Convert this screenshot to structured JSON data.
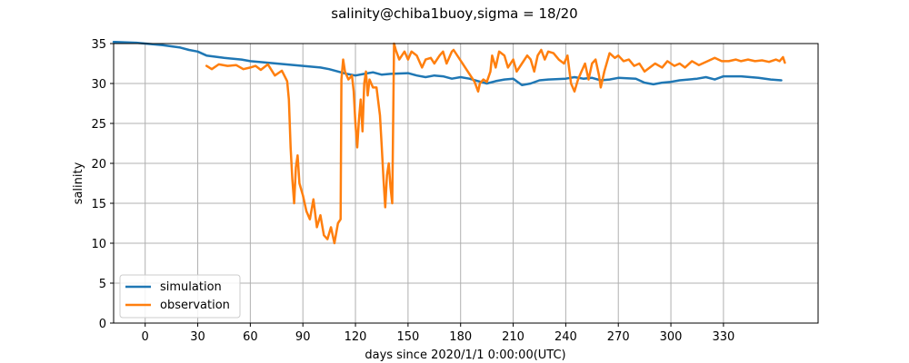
{
  "chart_data": {
    "type": "line",
    "title": "salinity@chiba1buoy,sigma = 18/20",
    "xlabel": "days since 2020/1/1 0:00:00(UTC)",
    "ylabel": "salinity",
    "xlim": [
      -18,
      384
    ],
    "ylim": [
      0,
      35
    ],
    "xticks": [
      0,
      30,
      60,
      90,
      120,
      150,
      180,
      210,
      240,
      270,
      300,
      330
    ],
    "yticks": [
      0,
      5,
      10,
      15,
      20,
      25,
      30,
      35
    ],
    "grid": true,
    "legend_position": "lower-left",
    "series": [
      {
        "name": "simulation",
        "color": "#1f77b4",
        "points": [
          [
            -18,
            35.2
          ],
          [
            -5,
            35.1
          ],
          [
            0,
            35.0
          ],
          [
            10,
            34.8
          ],
          [
            20,
            34.5
          ],
          [
            25,
            34.2
          ],
          [
            30,
            34.0
          ],
          [
            35,
            33.5
          ],
          [
            45,
            33.2
          ],
          [
            55,
            33.0
          ],
          [
            60,
            32.8
          ],
          [
            70,
            32.6
          ],
          [
            80,
            32.4
          ],
          [
            85,
            32.3
          ],
          [
            90,
            32.2
          ],
          [
            100,
            32.0
          ],
          [
            105,
            31.8
          ],
          [
            110,
            31.5
          ],
          [
            115,
            31.2
          ],
          [
            120,
            31.0
          ],
          [
            125,
            31.2
          ],
          [
            130,
            31.4
          ],
          [
            135,
            31.1
          ],
          [
            140,
            31.2
          ],
          [
            150,
            31.3
          ],
          [
            155,
            31.0
          ],
          [
            160,
            30.8
          ],
          [
            165,
            31.0
          ],
          [
            170,
            30.9
          ],
          [
            175,
            30.6
          ],
          [
            180,
            30.8
          ],
          [
            185,
            30.6
          ],
          [
            190,
            30.3
          ],
          [
            195,
            30.0
          ],
          [
            200,
            30.3
          ],
          [
            205,
            30.5
          ],
          [
            210,
            30.6
          ],
          [
            215,
            29.8
          ],
          [
            220,
            30.0
          ],
          [
            225,
            30.4
          ],
          [
            230,
            30.5
          ],
          [
            240,
            30.6
          ],
          [
            245,
            30.8
          ],
          [
            250,
            30.6
          ],
          [
            255,
            30.7
          ],
          [
            260,
            30.4
          ],
          [
            265,
            30.5
          ],
          [
            270,
            30.7
          ],
          [
            280,
            30.6
          ],
          [
            285,
            30.1
          ],
          [
            290,
            29.9
          ],
          [
            295,
            30.1
          ],
          [
            300,
            30.2
          ],
          [
            305,
            30.4
          ],
          [
            315,
            30.6
          ],
          [
            320,
            30.8
          ],
          [
            325,
            30.5
          ],
          [
            330,
            30.9
          ],
          [
            340,
            30.9
          ],
          [
            350,
            30.7
          ],
          [
            357,
            30.5
          ],
          [
            363,
            30.4
          ]
        ]
      },
      {
        "name": "observation",
        "color": "#ff7f0e",
        "points": [
          [
            35,
            32.2
          ],
          [
            38,
            31.8
          ],
          [
            42,
            32.4
          ],
          [
            47,
            32.2
          ],
          [
            52,
            32.3
          ],
          [
            56,
            31.8
          ],
          [
            60,
            32.0
          ],
          [
            63,
            32.2
          ],
          [
            66,
            31.7
          ],
          [
            70,
            32.4
          ],
          [
            74,
            31.0
          ],
          [
            78,
            31.6
          ],
          [
            81,
            30.3
          ],
          [
            82,
            28.0
          ],
          [
            83,
            22.0
          ],
          [
            84,
            18.0
          ],
          [
            85,
            15.0
          ],
          [
            86,
            19.5
          ],
          [
            87,
            21.0
          ],
          [
            88,
            17.5
          ],
          [
            90,
            16.0
          ],
          [
            92,
            14.0
          ],
          [
            94,
            13.0
          ],
          [
            96,
            15.5
          ],
          [
            98,
            12.0
          ],
          [
            100,
            13.5
          ],
          [
            102,
            11.0
          ],
          [
            104,
            10.5
          ],
          [
            106,
            12.0
          ],
          [
            108,
            10.0
          ],
          [
            110,
            12.5
          ],
          [
            111.5,
            13.0
          ],
          [
            112,
            30.5
          ],
          [
            113,
            33.0
          ],
          [
            114,
            31.5
          ],
          [
            116,
            30.5
          ],
          [
            118,
            31.0
          ],
          [
            119,
            29.0
          ],
          [
            120,
            25.0
          ],
          [
            121,
            22.0
          ],
          [
            122,
            25.5
          ],
          [
            123,
            28.0
          ],
          [
            124,
            24.0
          ],
          [
            125,
            30.0
          ],
          [
            126,
            31.5
          ],
          [
            127,
            28.5
          ],
          [
            128,
            30.5
          ],
          [
            130,
            29.5
          ],
          [
            132,
            29.5
          ],
          [
            134,
            26.0
          ],
          [
            135,
            22.0
          ],
          [
            136,
            18.0
          ],
          [
            137,
            14.5
          ],
          [
            138,
            18.5
          ],
          [
            139,
            20.0
          ],
          [
            140,
            17.0
          ],
          [
            141,
            15.0
          ],
          [
            142,
            35.0
          ],
          [
            143,
            34.2
          ],
          [
            145,
            33.0
          ],
          [
            148,
            34.0
          ],
          [
            150,
            33.0
          ],
          [
            152,
            34.0
          ],
          [
            155,
            33.5
          ],
          [
            158,
            32.0
          ],
          [
            160,
            33.0
          ],
          [
            163,
            33.2
          ],
          [
            165,
            32.5
          ],
          [
            168,
            33.5
          ],
          [
            170,
            34.0
          ],
          [
            172,
            32.5
          ],
          [
            175,
            34.0
          ],
          [
            176,
            34.2
          ],
          [
            188,
            30.2
          ],
          [
            190,
            29.0
          ],
          [
            191,
            30.0
          ],
          [
            193,
            30.5
          ],
          [
            195,
            30.2
          ],
          [
            197,
            31.5
          ],
          [
            198,
            33.5
          ],
          [
            200,
            32.0
          ],
          [
            202,
            34.0
          ],
          [
            205,
            33.5
          ],
          [
            207,
            32.0
          ],
          [
            210,
            33.0
          ],
          [
            212,
            31.5
          ],
          [
            215,
            32.5
          ],
          [
            218,
            33.5
          ],
          [
            220,
            33.0
          ],
          [
            222,
            31.5
          ],
          [
            224,
            33.5
          ],
          [
            226,
            34.2
          ],
          [
            228,
            33.0
          ],
          [
            230,
            34.0
          ],
          [
            233,
            33.8
          ],
          [
            236,
            33.0
          ],
          [
            239,
            32.5
          ],
          [
            241,
            33.5
          ],
          [
            243,
            30.0
          ],
          [
            245,
            29.0
          ],
          [
            247,
            30.5
          ],
          [
            249,
            31.5
          ],
          [
            251,
            32.5
          ],
          [
            253,
            30.5
          ],
          [
            255,
            32.5
          ],
          [
            257,
            33.0
          ],
          [
            259,
            31.0
          ],
          [
            260,
            29.5
          ],
          [
            262,
            31.5
          ],
          [
            265,
            33.8
          ],
          [
            268,
            33.2
          ],
          [
            270,
            33.5
          ],
          [
            273,
            32.8
          ],
          [
            276,
            33.0
          ],
          [
            279,
            32.2
          ],
          [
            282,
            32.5
          ],
          [
            285,
            31.5
          ],
          [
            288,
            32.0
          ],
          [
            291,
            32.5
          ],
          [
            295,
            32.0
          ],
          [
            298,
            32.8
          ],
          [
            302,
            32.2
          ],
          [
            305,
            32.5
          ],
          [
            308,
            32.0
          ],
          [
            312,
            32.8
          ],
          [
            316,
            32.3
          ],
          [
            321,
            32.8
          ],
          [
            325,
            33.2
          ],
          [
            329,
            32.8
          ],
          [
            333,
            32.8
          ],
          [
            337,
            33.0
          ],
          [
            340,
            32.8
          ],
          [
            344,
            33.0
          ],
          [
            348,
            32.8
          ],
          [
            352,
            32.9
          ],
          [
            356,
            32.7
          ],
          [
            360,
            33.0
          ],
          [
            362,
            32.8
          ],
          [
            364,
            33.3
          ],
          [
            365,
            32.6
          ]
        ]
      }
    ]
  }
}
